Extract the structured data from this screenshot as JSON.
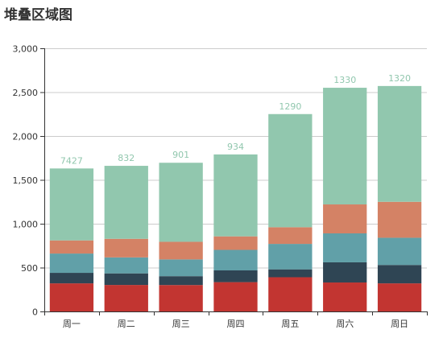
{
  "chart_data": {
    "type": "bar",
    "stacked": true,
    "title": "堆叠区域图",
    "categories": [
      "周一",
      "周二",
      "周三",
      "周四",
      "周五",
      "周六",
      "周日"
    ],
    "ylim": [
      0,
      3000
    ],
    "yticks": [
      0,
      500,
      1000,
      1500,
      2000,
      2500,
      3000
    ],
    "ytick_labels": [
      "0",
      "500",
      "1,000",
      "1,500",
      "2,000",
      "2,500",
      "3,000"
    ],
    "grid": true,
    "series": [
      {
        "color": "#c23531",
        "values": [
          320,
          302,
          301,
          334,
          390,
          330,
          320
        ]
      },
      {
        "color": "#2f4554",
        "values": [
          120,
          132,
          101,
          134,
          90,
          230,
          210
        ]
      },
      {
        "color": "#61a0a8",
        "values": [
          220,
          182,
          191,
          234,
          290,
          330,
          310
        ]
      },
      {
        "color": "#d48265",
        "values": [
          150,
          212,
          201,
          154,
          190,
          330,
          410
        ]
      },
      {
        "color": "#91c7ae",
        "values": [
          820,
          832,
          901,
          934,
          1290,
          1330,
          1320
        ]
      }
    ],
    "top_labels": [
      "7427",
      "832",
      "901",
      "934",
      "1290",
      "1330",
      "1320"
    ],
    "top_label_color": "#91c7ae"
  }
}
